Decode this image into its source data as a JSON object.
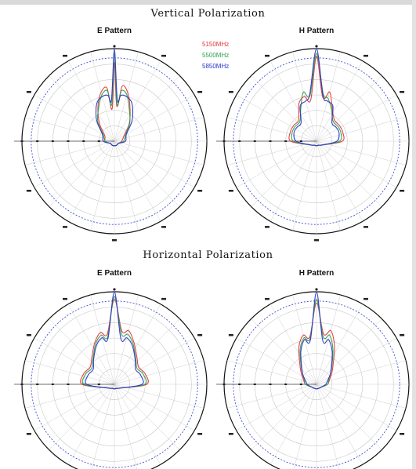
{
  "figure": {
    "sections": [
      {
        "title": "Vertical Polarization"
      },
      {
        "title": "Horizontal Polarization"
      }
    ],
    "legend": [
      {
        "label": "5150MHz",
        "color": "#e23a3a"
      },
      {
        "label": "5500MHz",
        "color": "#2fa24a"
      },
      {
        "label": "5850MHz",
        "color": "#2a35c9"
      }
    ]
  },
  "chart_data": [
    {
      "type": "polar",
      "section": "Vertical Polarization",
      "title": "E Pattern",
      "angles_deg": [
        -180,
        -150,
        -120,
        -90,
        -60,
        -40,
        -25,
        -15,
        -8,
        -4,
        0,
        4,
        8,
        15,
        25,
        40,
        60,
        90,
        120,
        150,
        180
      ],
      "grid": true,
      "series": [
        {
          "name": "5150MHz",
          "color": "#e23a3a",
          "values": [
            0.05,
            0.05,
            0.05,
            0.1,
            0.12,
            0.25,
            0.42,
            0.55,
            0.58,
            0.35,
            0.85,
            0.38,
            0.6,
            0.55,
            0.4,
            0.25,
            0.12,
            0.08,
            0.05,
            0.05,
            0.05
          ]
        },
        {
          "name": "5500MHz",
          "color": "#2fa24a",
          "values": [
            0.05,
            0.05,
            0.05,
            0.1,
            0.14,
            0.28,
            0.4,
            0.52,
            0.55,
            0.4,
            0.95,
            0.4,
            0.55,
            0.52,
            0.38,
            0.26,
            0.14,
            0.1,
            0.05,
            0.05,
            0.05
          ]
        },
        {
          "name": "5850MHz",
          "color": "#2a35c9",
          "values": [
            0.05,
            0.05,
            0.05,
            0.12,
            0.15,
            0.3,
            0.45,
            0.5,
            0.5,
            0.45,
            1.0,
            0.45,
            0.5,
            0.5,
            0.45,
            0.3,
            0.15,
            0.12,
            0.05,
            0.05,
            0.05
          ]
        }
      ]
    },
    {
      "type": "polar",
      "section": "Vertical Polarization",
      "title": "H Pattern",
      "angles_deg": [
        -180,
        -150,
        -120,
        -90,
        -70,
        -55,
        -40,
        -25,
        -15,
        -8,
        0,
        8,
        15,
        25,
        40,
        55,
        70,
        90,
        120,
        150,
        180
      ],
      "grid": true,
      "series": [
        {
          "name": "5150MHz",
          "color": "#e23a3a",
          "values": [
            0.05,
            0.05,
            0.08,
            0.28,
            0.3,
            0.3,
            0.3,
            0.45,
            0.5,
            0.45,
            0.92,
            0.48,
            0.55,
            0.4,
            0.3,
            0.3,
            0.3,
            0.28,
            0.08,
            0.05,
            0.05
          ]
        },
        {
          "name": "5500MHz",
          "color": "#2fa24a",
          "values": [
            0.05,
            0.05,
            0.08,
            0.25,
            0.28,
            0.28,
            0.28,
            0.4,
            0.55,
            0.5,
            0.95,
            0.52,
            0.48,
            0.38,
            0.28,
            0.28,
            0.28,
            0.25,
            0.08,
            0.05,
            0.05
          ]
        },
        {
          "name": "5850MHz",
          "color": "#2a35c9",
          "values": [
            0.05,
            0.05,
            0.08,
            0.22,
            0.26,
            0.26,
            0.26,
            0.42,
            0.45,
            0.52,
            1.0,
            0.5,
            0.45,
            0.42,
            0.26,
            0.26,
            0.26,
            0.22,
            0.08,
            0.05,
            0.05
          ]
        }
      ]
    },
    {
      "type": "polar",
      "section": "Horizontal Polarization",
      "title": "E Pattern",
      "angles_deg": [
        -180,
        -150,
        -120,
        -90,
        -70,
        -55,
        -40,
        -25,
        -15,
        -8,
        0,
        8,
        15,
        25,
        40,
        55,
        70,
        90,
        120,
        150,
        180
      ],
      "grid": true,
      "series": [
        {
          "name": "5150MHz",
          "color": "#e23a3a",
          "values": [
            0.05,
            0.05,
            0.08,
            0.35,
            0.35,
            0.32,
            0.38,
            0.5,
            0.58,
            0.55,
            0.92,
            0.58,
            0.6,
            0.5,
            0.38,
            0.32,
            0.35,
            0.35,
            0.08,
            0.05,
            0.05
          ]
        },
        {
          "name": "5500MHz",
          "color": "#2fa24a",
          "values": [
            0.05,
            0.05,
            0.08,
            0.33,
            0.33,
            0.3,
            0.36,
            0.48,
            0.55,
            0.52,
            0.95,
            0.55,
            0.56,
            0.48,
            0.36,
            0.3,
            0.33,
            0.33,
            0.08,
            0.05,
            0.05
          ]
        },
        {
          "name": "5850MHz",
          "color": "#2a35c9",
          "values": [
            0.05,
            0.05,
            0.08,
            0.3,
            0.3,
            0.28,
            0.35,
            0.46,
            0.52,
            0.5,
            1.0,
            0.5,
            0.52,
            0.46,
            0.35,
            0.28,
            0.3,
            0.3,
            0.08,
            0.05,
            0.05
          ]
        }
      ]
    },
    {
      "type": "polar",
      "section": "Horizontal Polarization",
      "title": "H Pattern",
      "angles_deg": [
        -180,
        -150,
        -120,
        -90,
        -70,
        -55,
        -40,
        -25,
        -15,
        -8,
        0,
        8,
        15,
        25,
        40,
        55,
        70,
        90,
        120,
        150,
        180
      ],
      "grid": true,
      "series": [
        {
          "name": "5150MHz",
          "color": "#e23a3a",
          "values": [
            0.05,
            0.05,
            0.06,
            0.12,
            0.15,
            0.2,
            0.28,
            0.45,
            0.55,
            0.52,
            0.88,
            0.55,
            0.6,
            0.46,
            0.28,
            0.2,
            0.15,
            0.12,
            0.06,
            0.05,
            0.05
          ]
        },
        {
          "name": "5500MHz",
          "color": "#2fa24a",
          "values": [
            0.05,
            0.05,
            0.06,
            0.12,
            0.14,
            0.18,
            0.26,
            0.42,
            0.52,
            0.5,
            0.92,
            0.52,
            0.55,
            0.42,
            0.26,
            0.18,
            0.14,
            0.12,
            0.06,
            0.05,
            0.05
          ]
        },
        {
          "name": "5850MHz",
          "color": "#2a35c9",
          "values": [
            0.05,
            0.05,
            0.06,
            0.1,
            0.13,
            0.18,
            0.25,
            0.4,
            0.5,
            0.48,
            1.0,
            0.48,
            0.5,
            0.4,
            0.25,
            0.18,
            0.13,
            0.1,
            0.06,
            0.05,
            0.05
          ]
        }
      ]
    }
  ]
}
